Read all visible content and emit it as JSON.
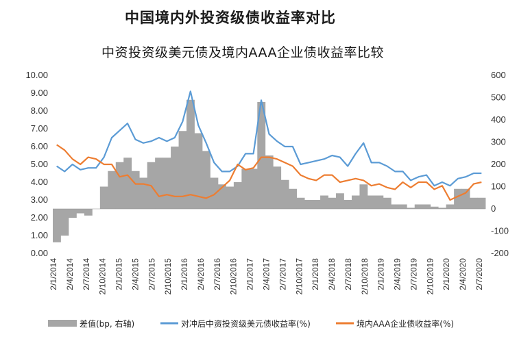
{
  "title": "中国境内外投资级债收益率对比",
  "chart_data": {
    "type": "bar-line-combo",
    "title": "中资投资级美元债及境内AAA企业债收益率比较",
    "yleft": {
      "ticks": [
        "10.00",
        "9.00",
        "8.00",
        "7.00",
        "6.00",
        "5.00",
        "4.00",
        "3.00",
        "2.00",
        "1.00",
        "0.00"
      ],
      "ylim": [
        0,
        10
      ]
    },
    "yright": {
      "ticks": [
        "600",
        "500",
        "400",
        "300",
        "200",
        "100",
        "0",
        "-100",
        "-200"
      ],
      "ylim": [
        -200,
        600
      ]
    },
    "x_labels": [
      "2/1/2014",
      "2/4/2014",
      "2/7/2014",
      "2/10/2014",
      "2/1/2015",
      "2/4/2015",
      "2/7/2015",
      "2/10/2015",
      "2/1/2016",
      "2/4/2016",
      "2/7/2016",
      "2/10/2016",
      "2/1/2017",
      "2/4/2017",
      "2/7/2017",
      "2/10/2017",
      "2/1/2018",
      "2/4/2018",
      "2/7/2018",
      "2/10/2018",
      "2/1/2019",
      "2/4/2019",
      "2/7/2019",
      "2/10/2019",
      "2/1/2020",
      "2/4/2020",
      "2/7/2020"
    ],
    "legend": [
      {
        "name": "差值(bp, 右轴)",
        "color": "#a6a6a6"
      },
      {
        "name": "对冲后中资投资级美元债收益率(%)",
        "color": "#5b9bd5"
      },
      {
        "name": "境内AAA企业债收益率(%)",
        "color": "#ed7d31"
      }
    ],
    "series": [
      {
        "name": "对冲后中资投资级美元债收益率(%)",
        "axis": "left",
        "values": [
          4.9,
          4.6,
          5.0,
          4.7,
          4.8,
          4.8,
          5.4,
          6.5,
          6.9,
          7.3,
          6.4,
          6.2,
          6.3,
          6.5,
          6.3,
          6.5,
          7.4,
          9.1,
          7.2,
          6.2,
          5.1,
          4.6,
          4.6,
          4.9,
          5.6,
          5.6,
          8.6,
          6.7,
          6.3,
          6.0,
          6.0,
          5.0,
          5.1,
          5.2,
          5.3,
          5.5,
          5.4,
          4.9,
          5.6,
          6.2,
          5.1,
          5.1,
          4.9,
          4.6,
          4.6,
          4.1,
          4.3,
          4.4,
          3.8,
          4.0,
          3.8,
          4.2,
          4.3,
          4.5,
          4.5
        ]
      },
      {
        "name": "境内AAA企业债收益率(%)",
        "axis": "left",
        "values": [
          6.1,
          5.8,
          5.3,
          5.0,
          5.4,
          5.3,
          5.0,
          5.0,
          4.3,
          4.4,
          3.9,
          3.9,
          3.8,
          3.2,
          3.3,
          3.2,
          3.2,
          3.3,
          3.2,
          3.1,
          3.3,
          3.7,
          4.1,
          5.0,
          4.7,
          4.8,
          5.4,
          5.4,
          5.3,
          5.1,
          4.9,
          4.4,
          4.2,
          4.1,
          4.4,
          4.4,
          4.0,
          4.1,
          4.2,
          4.1,
          3.8,
          3.9,
          3.7,
          3.6,
          4.0,
          3.7,
          4.0,
          4.0,
          3.6,
          3.8,
          3.0,
          3.2,
          3.4,
          3.9,
          4.0
        ]
      },
      {
        "name": "差值(bp, 右轴)",
        "axis": "right",
        "values": [
          -150,
          -120,
          -40,
          -20,
          -30,
          0,
          100,
          170,
          210,
          230,
          170,
          140,
          210,
          230,
          230,
          280,
          350,
          490,
          340,
          260,
          140,
          110,
          100,
          120,
          180,
          180,
          480,
          240,
          190,
          130,
          90,
          50,
          40,
          40,
          60,
          50,
          70,
          40,
          60,
          110,
          60,
          60,
          50,
          20,
          20,
          5,
          20,
          20,
          10,
          5,
          20,
          90,
          90,
          50,
          50
        ]
      }
    ]
  }
}
